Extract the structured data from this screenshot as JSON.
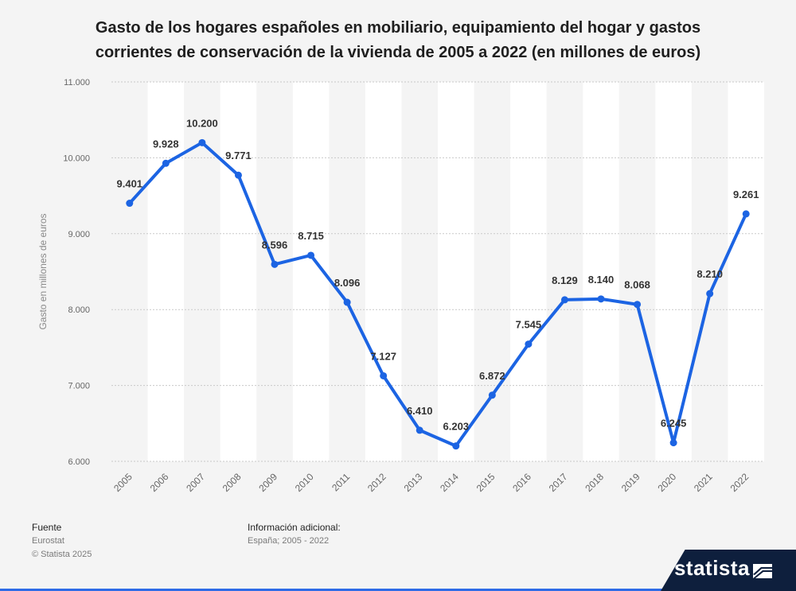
{
  "title_lines": [
    "Gasto de los hogares españoles en mobiliario, equipamiento del hogar y gastos",
    "corrientes de conservación de la vivienda de 2005 a 2022 (en millones de euros)"
  ],
  "chart_data": {
    "type": "line",
    "title": "Gasto de los hogares españoles en mobiliario, equipamiento del hogar y gastos corrientes de conservación de la vivienda de 2005 a 2022 (en millones de euros)",
    "xlabel": "",
    "ylabel": "Gasto en millones de euros",
    "categories": [
      "2005",
      "2006",
      "2007",
      "2008",
      "2009",
      "2010",
      "2011",
      "2012",
      "2013",
      "2014",
      "2015",
      "2016",
      "2017",
      "2018",
      "2019",
      "2020",
      "2021",
      "2022"
    ],
    "values": [
      9401,
      9928,
      10200,
      9771,
      8596,
      8715,
      8096,
      7127,
      6410,
      6203,
      6872,
      7545,
      8129,
      8140,
      8068,
      6245,
      8210,
      9261
    ],
    "value_labels": [
      "9.401",
      "9.928",
      "10.200",
      "9.771",
      "8.596",
      "8.715",
      "8.096",
      "7.127",
      "6.410",
      "6.203",
      "6.872",
      "7.545",
      "8.129",
      "8.140",
      "8.068",
      "6.245",
      "8.210",
      "9.261"
    ],
    "ylim": [
      6000,
      11000
    ],
    "yticks": [
      6000,
      7000,
      8000,
      9000,
      10000,
      11000
    ],
    "ytick_labels": [
      "6.000",
      "7.000",
      "8.000",
      "9.000",
      "10.000",
      "11.000"
    ],
    "grid": true,
    "line_color": "#1c64e3"
  },
  "footer": {
    "source_heading": "Fuente",
    "source": "Eurostat",
    "copyright": "© Statista 2025",
    "info_heading": "Información adicional:",
    "info": "España; 2005 - 2022"
  },
  "brand": {
    "name": "statista",
    "color": "#0e1f3d"
  }
}
